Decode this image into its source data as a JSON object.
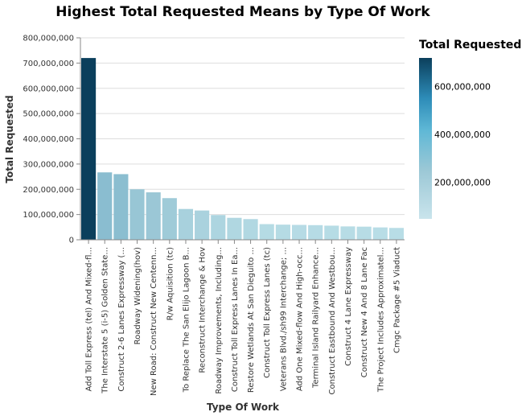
{
  "chart_data": {
    "type": "bar",
    "title": "Highest Total Requested Means by Type Of Work",
    "xlabel": "Type Of Work",
    "ylabel": "Total Requested",
    "ylim": [
      0,
      800000000
    ],
    "y_ticks": [
      0,
      100000000,
      200000000,
      300000000,
      400000000,
      500000000,
      600000000,
      700000000,
      800000000
    ],
    "y_tick_labels": [
      "0",
      "100,000,000",
      "200,000,000",
      "300,000,000",
      "400,000,000",
      "500,000,000",
      "600,000,000",
      "700,000,000",
      "800,000,000"
    ],
    "grid": true,
    "categories": [
      "Add Toll Express (tel) And Mixed-fl...",
      "The Interstate 5 (i-5) Golden State...",
      "Construct 2-6 Lanes Expressway (...",
      "Roadway Widening(hov)",
      "New Road: Construct New Centenn...",
      "R/w Aquisition (tc)",
      "To Replace The San Elijo Lagoon B...",
      "Reconstruct Interchange & Hov",
      "Roadway Improvements, Including...",
      "Construct Toll Express Lanes In Ea...",
      "Restore Wetlands At San Dieguito ...",
      "Construct Toll Express Lanes (tc)",
      "Veterans Blvd./sh99 Interchange; ...",
      "Add One Mixed-flow And High-occ...",
      "Terminal Island Railyard Enhance...",
      "Construct Eastbound And Westbou...",
      "Construct 4 Lane Expressway",
      "Construct New 4 And 8 Lane Fac",
      "The Project Includes Approximatel...",
      "Cmgc Package #5  Viaduct"
    ],
    "values": [
      720000000,
      267000000,
      260000000,
      200000000,
      188000000,
      165000000,
      122000000,
      116000000,
      98000000,
      87000000,
      82000000,
      62000000,
      60000000,
      59000000,
      58000000,
      56000000,
      53000000,
      52000000,
      49000000,
      47000000
    ],
    "legend": {
      "title": "Total Requested",
      "placement": "right",
      "labels": [
        "200,000,000",
        "400,000,000",
        "600,000,000"
      ],
      "label_values": [
        200000000,
        400000000,
        600000000
      ],
      "domain": [
        47000000,
        720000000
      ]
    },
    "colors": {
      "scale": [
        "#b8dde6",
        "#9cc8d6",
        "#7fb7cc",
        "#38a9d3",
        "#1d6a8d",
        "#0b3f5c"
      ],
      "axis": "#888888",
      "grid": "#dddddd"
    }
  }
}
